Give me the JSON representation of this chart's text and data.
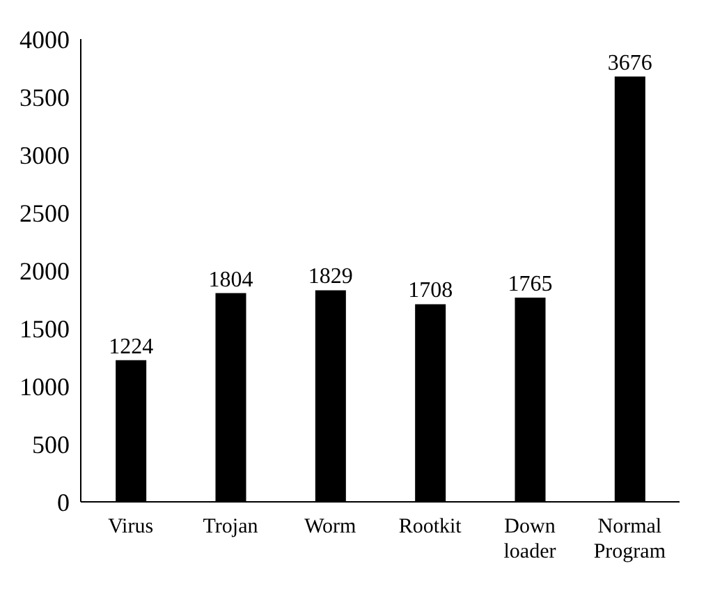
{
  "chart_data": {
    "type": "bar",
    "categories": [
      "Virus",
      "Trojan",
      "Worm",
      "Rootkit",
      "Down loader",
      "Normal Program"
    ],
    "values": [
      1224,
      1804,
      1829,
      1708,
      1765,
      3676
    ],
    "color": "#000000",
    "ylim": [
      0,
      4000
    ],
    "yticks": [
      0,
      500,
      1000,
      1500,
      2000,
      2500,
      3000,
      3500,
      4000
    ],
    "data_labels": true
  }
}
